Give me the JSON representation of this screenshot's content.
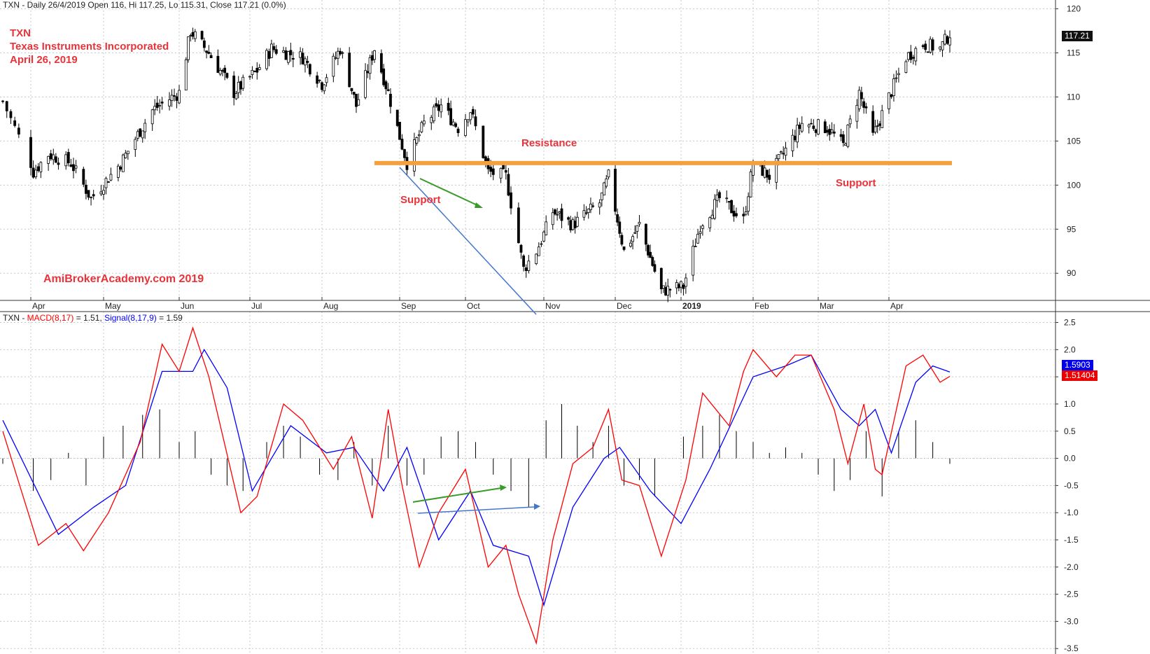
{
  "header": {
    "price_title": "TXN - Daily 26/4/2019 Open 116, Hi 117.25, Lo 115.31, Close 117.21 (0.0%)",
    "macd_prefix": "TXN - ",
    "macd_name": "MACD(8,17)",
    "macd_value": " = 1.51, ",
    "signal_name": "Signal(8,17,9)",
    "signal_value": " = 1.59"
  },
  "annotations": {
    "ticker": "TXN",
    "company": "Texas Instruments Incorporated",
    "date": "April 26, 2019",
    "watermark": "AmiBrokerAcademy.com  2019",
    "resistance": "Resistance",
    "support_left": "Support",
    "support_right": "Support"
  },
  "price_tags": {
    "last_price": "117.21",
    "signal_last": "1.5903",
    "macd_last": "1.51404"
  },
  "colors": {
    "macd": "#ff0000",
    "signal": "#0000ff",
    "resistance_line": "#f5a040",
    "grid": "#c8c8c8",
    "annotation_red": "#e8333a",
    "arrow_green": "#3a9a2a",
    "arrow_blue": "#4477cc"
  },
  "chart_data": [
    {
      "type": "candlestick",
      "title": "TXN - Daily 26/4/2019 Open 116, Hi 117.25, Lo 115.31, Close 117.21 (0.0%)",
      "ylim": [
        87,
        121
      ],
      "y_ticks": [
        90,
        95,
        100,
        105,
        110,
        115,
        120
      ],
      "x_tick_labels": [
        "Apr",
        "May",
        "Jun",
        "Jul",
        "Aug",
        "Sep",
        "Oct",
        "Nov",
        "Dec",
        "2019",
        "Feb",
        "Mar",
        "Apr"
      ],
      "x_tick_dates": [
        "2018-04-02",
        "2018-05-01",
        "2018-06-01",
        "2018-07-02",
        "2018-08-01",
        "2018-09-04",
        "2018-10-01",
        "2018-11-01",
        "2018-12-03",
        "2019-01-02",
        "2019-02-01",
        "2019-03-01",
        "2019-04-01"
      ],
      "close_path_approx": [
        {
          "date": "2018-03-26",
          "value": 109.5
        },
        {
          "date": "2018-04-03",
          "value": 101.5
        },
        {
          "date": "2018-04-09",
          "value": 103.5
        },
        {
          "date": "2018-04-18",
          "value": 102.5
        },
        {
          "date": "2018-04-26",
          "value": 98.5
        },
        {
          "date": "2018-05-08",
          "value": 102.5
        },
        {
          "date": "2018-05-21",
          "value": 108.5
        },
        {
          "date": "2018-06-01",
          "value": 110.5
        },
        {
          "date": "2018-06-06",
          "value": 117.5
        },
        {
          "date": "2018-06-14",
          "value": 115.0
        },
        {
          "date": "2018-06-25",
          "value": 110.5
        },
        {
          "date": "2018-07-05",
          "value": 113.0
        },
        {
          "date": "2018-07-11",
          "value": 115.5
        },
        {
          "date": "2018-07-24",
          "value": 114.5
        },
        {
          "date": "2018-08-01",
          "value": 111.5
        },
        {
          "date": "2018-08-09",
          "value": 115.5
        },
        {
          "date": "2018-08-16",
          "value": 109.0
        },
        {
          "date": "2018-08-24",
          "value": 115.5
        },
        {
          "date": "2018-08-30",
          "value": 110.5
        },
        {
          "date": "2018-09-07",
          "value": 102.5
        },
        {
          "date": "2018-09-14",
          "value": 107.0
        },
        {
          "date": "2018-09-21",
          "value": 109.0
        },
        {
          "date": "2018-09-28",
          "value": 106.5
        },
        {
          "date": "2018-10-03",
          "value": 108.5
        },
        {
          "date": "2018-10-10",
          "value": 101.5
        },
        {
          "date": "2018-10-17",
          "value": 101.0
        },
        {
          "date": "2018-10-24",
          "value": 90.5
        },
        {
          "date": "2018-10-29",
          "value": 92.5
        },
        {
          "date": "2018-11-05",
          "value": 97.0
        },
        {
          "date": "2018-11-14",
          "value": 95.5
        },
        {
          "date": "2018-11-26",
          "value": 98.0
        },
        {
          "date": "2018-11-30",
          "value": 101.0
        },
        {
          "date": "2018-12-07",
          "value": 92.5
        },
        {
          "date": "2018-12-14",
          "value": 95.5
        },
        {
          "date": "2018-12-24",
          "value": 88.0
        },
        {
          "date": "2019-01-03",
          "value": 88.5
        },
        {
          "date": "2019-01-10",
          "value": 95.5
        },
        {
          "date": "2019-01-18",
          "value": 98.5
        },
        {
          "date": "2019-01-28",
          "value": 96.0
        },
        {
          "date": "2019-02-01",
          "value": 102.5
        },
        {
          "date": "2019-02-08",
          "value": 101.0
        },
        {
          "date": "2019-02-15",
          "value": 104.0
        },
        {
          "date": "2019-02-22",
          "value": 107.0
        },
        {
          "date": "2019-03-05",
          "value": 106.5
        },
        {
          "date": "2019-03-12",
          "value": 104.5
        },
        {
          "date": "2019-03-19",
          "value": 110.5
        },
        {
          "date": "2019-03-25",
          "value": 105.5
        },
        {
          "date": "2019-04-01",
          "value": 110.0
        },
        {
          "date": "2019-04-08",
          "value": 114.5
        },
        {
          "date": "2019-04-15",
          "value": 116.0
        },
        {
          "date": "2019-04-22",
          "value": 115.5
        },
        {
          "date": "2019-04-26",
          "value": 117.21
        }
      ],
      "last_bar": {
        "date": "2019-04-26",
        "open": 116,
        "high": 117.25,
        "low": 115.31,
        "close": 117.21
      },
      "resistance_level": 102.5,
      "annotations": [
        "Resistance",
        "Support",
        "Support"
      ]
    },
    {
      "type": "line",
      "title": "TXN - MACD(8,17) = 1.51, Signal(8,17,9) = 1.59",
      "ylim": [
        -3.6,
        2.7
      ],
      "y_ticks": [
        -3.5,
        -3.0,
        -2.5,
        -2.0,
        -1.5,
        -1.0,
        -0.5,
        0.0,
        0.5,
        1.0,
        1.5,
        2.0,
        2.5
      ],
      "series": [
        {
          "name": "MACD(8,17)",
          "color": "#ff0000",
          "points": [
            {
              "date": "2018-03-26",
              "value": 0.5
            },
            {
              "date": "2018-04-05",
              "value": -1.6
            },
            {
              "date": "2018-04-16",
              "value": -1.2
            },
            {
              "date": "2018-04-23",
              "value": -1.7
            },
            {
              "date": "2018-05-03",
              "value": -1.0
            },
            {
              "date": "2018-05-16",
              "value": 0.3
            },
            {
              "date": "2018-05-25",
              "value": 2.1
            },
            {
              "date": "2018-06-01",
              "value": 1.6
            },
            {
              "date": "2018-06-07",
              "value": 2.4
            },
            {
              "date": "2018-06-14",
              "value": 1.5
            },
            {
              "date": "2018-06-28",
              "value": -1.0
            },
            {
              "date": "2018-07-05",
              "value": -0.7
            },
            {
              "date": "2018-07-16",
              "value": 1.0
            },
            {
              "date": "2018-07-24",
              "value": 0.7
            },
            {
              "date": "2018-08-06",
              "value": -0.2
            },
            {
              "date": "2018-08-14",
              "value": 0.4
            },
            {
              "date": "2018-08-23",
              "value": -1.1
            },
            {
              "date": "2018-08-30",
              "value": 0.9
            },
            {
              "date": "2018-09-05",
              "value": -0.5
            },
            {
              "date": "2018-09-12",
              "value": -2.0
            },
            {
              "date": "2018-09-20",
              "value": -1.0
            },
            {
              "date": "2018-10-01",
              "value": -0.2
            },
            {
              "date": "2018-10-10",
              "value": -2.0
            },
            {
              "date": "2018-10-17",
              "value": -1.6
            },
            {
              "date": "2018-10-22",
              "value": -2.5
            },
            {
              "date": "2018-10-29",
              "value": -3.4
            },
            {
              "date": "2018-11-05",
              "value": -1.5
            },
            {
              "date": "2018-11-14",
              "value": -0.1
            },
            {
              "date": "2018-11-23",
              "value": 0.2
            },
            {
              "date": "2018-11-30",
              "value": 0.9
            },
            {
              "date": "2018-12-06",
              "value": -0.4
            },
            {
              "date": "2018-12-14",
              "value": -0.5
            },
            {
              "date": "2018-12-24",
              "value": -1.8
            },
            {
              "date": "2019-01-04",
              "value": -0.4
            },
            {
              "date": "2019-01-11",
              "value": 1.2
            },
            {
              "date": "2019-01-22",
              "value": 0.6
            },
            {
              "date": "2019-01-28",
              "value": 1.6
            },
            {
              "date": "2019-02-01",
              "value": 2.0
            },
            {
              "date": "2019-02-11",
              "value": 1.5
            },
            {
              "date": "2019-02-19",
              "value": 1.9
            },
            {
              "date": "2019-02-26",
              "value": 1.9
            },
            {
              "date": "2019-03-08",
              "value": 0.9
            },
            {
              "date": "2019-03-14",
              "value": -0.1
            },
            {
              "date": "2019-03-21",
              "value": 1.0
            },
            {
              "date": "2019-03-26",
              "value": -0.2
            },
            {
              "date": "2019-03-29",
              "value": -0.3
            },
            {
              "date": "2019-04-08",
              "value": 1.7
            },
            {
              "date": "2019-04-15",
              "value": 1.9
            },
            {
              "date": "2019-04-22",
              "value": 1.4
            },
            {
              "date": "2019-04-26",
              "value": 1.51
            }
          ]
        },
        {
          "name": "Signal(8,17,9)",
          "color": "#0000ff",
          "points": [
            {
              "date": "2018-03-26",
              "value": 0.7
            },
            {
              "date": "2018-04-13",
              "value": -1.4
            },
            {
              "date": "2018-04-27",
              "value": -0.9
            },
            {
              "date": "2018-05-10",
              "value": -0.5
            },
            {
              "date": "2018-05-25",
              "value": 1.6
            },
            {
              "date": "2018-06-07",
              "value": 1.6
            },
            {
              "date": "2018-06-12",
              "value": 2.0
            },
            {
              "date": "2018-06-22",
              "value": 1.3
            },
            {
              "date": "2018-07-03",
              "value": -0.6
            },
            {
              "date": "2018-07-19",
              "value": 0.6
            },
            {
              "date": "2018-08-03",
              "value": 0.1
            },
            {
              "date": "2018-08-15",
              "value": 0.2
            },
            {
              "date": "2018-08-28",
              "value": -0.6
            },
            {
              "date": "2018-09-07",
              "value": 0.2
            },
            {
              "date": "2018-09-20",
              "value": -1.5
            },
            {
              "date": "2018-10-03",
              "value": -0.6
            },
            {
              "date": "2018-10-12",
              "value": -1.6
            },
            {
              "date": "2018-10-26",
              "value": -1.8
            },
            {
              "date": "2018-11-01",
              "value": -2.7
            },
            {
              "date": "2018-11-14",
              "value": -0.9
            },
            {
              "date": "2018-11-28",
              "value": 0.0
            },
            {
              "date": "2018-12-05",
              "value": 0.2
            },
            {
              "date": "2018-12-19",
              "value": -0.6
            },
            {
              "date": "2019-01-02",
              "value": -1.2
            },
            {
              "date": "2019-01-14",
              "value": -0.2
            },
            {
              "date": "2019-02-01",
              "value": 1.5
            },
            {
              "date": "2019-02-15",
              "value": 1.7
            },
            {
              "date": "2019-02-26",
              "value": 1.9
            },
            {
              "date": "2019-03-11",
              "value": 0.9
            },
            {
              "date": "2019-03-19",
              "value": 0.6
            },
            {
              "date": "2019-03-26",
              "value": 0.9
            },
            {
              "date": "2019-04-02",
              "value": 0.1
            },
            {
              "date": "2019-04-12",
              "value": 1.4
            },
            {
              "date": "2019-04-19",
              "value": 1.7
            },
            {
              "date": "2019-04-26",
              "value": 1.59
            }
          ]
        },
        {
          "name": "Histogram",
          "type": "bar",
          "color": "#000000",
          "points": [
            {
              "date": "2018-03-26",
              "value": -0.1
            },
            {
              "date": "2018-04-03",
              "value": -0.6
            },
            {
              "date": "2018-04-10",
              "value": -0.4
            },
            {
              "date": "2018-04-17",
              "value": 0.1
            },
            {
              "date": "2018-04-24",
              "value": -0.5
            },
            {
              "date": "2018-05-01",
              "value": 0.4
            },
            {
              "date": "2018-05-09",
              "value": 0.6
            },
            {
              "date": "2018-05-17",
              "value": 0.8
            },
            {
              "date": "2018-05-24",
              "value": 0.9
            },
            {
              "date": "2018-06-01",
              "value": 0.3
            },
            {
              "date": "2018-06-08",
              "value": 0.5
            },
            {
              "date": "2018-06-15",
              "value": -0.3
            },
            {
              "date": "2018-06-22",
              "value": -0.5
            },
            {
              "date": "2018-06-29",
              "value": -0.6
            },
            {
              "date": "2018-07-09",
              "value": 0.3
            },
            {
              "date": "2018-07-16",
              "value": 0.6
            },
            {
              "date": "2018-07-23",
              "value": 0.4
            },
            {
              "date": "2018-07-31",
              "value": -0.3
            },
            {
              "date": "2018-08-08",
              "value": -0.4
            },
            {
              "date": "2018-08-15",
              "value": 0.3
            },
            {
              "date": "2018-08-23",
              "value": -0.5
            },
            {
              "date": "2018-08-30",
              "value": 0.6
            },
            {
              "date": "2018-09-07",
              "value": -0.5
            },
            {
              "date": "2018-09-14",
              "value": -0.3
            },
            {
              "date": "2018-09-21",
              "value": 0.4
            },
            {
              "date": "2018-09-28",
              "value": 0.5
            },
            {
              "date": "2018-10-05",
              "value": 0.3
            },
            {
              "date": "2018-10-12",
              "value": -0.3
            },
            {
              "date": "2018-10-19",
              "value": -0.6
            },
            {
              "date": "2018-10-26",
              "value": -0.9
            },
            {
              "date": "2018-11-02",
              "value": 0.7
            },
            {
              "date": "2018-11-09",
              "value": 1.0
            },
            {
              "date": "2018-11-16",
              "value": 0.6
            },
            {
              "date": "2018-11-23",
              "value": 0.3
            },
            {
              "date": "2018-11-30",
              "value": 0.6
            },
            {
              "date": "2018-12-07",
              "value": -0.5
            },
            {
              "date": "2018-12-14",
              "value": -0.4
            },
            {
              "date": "2018-12-21",
              "value": -0.7
            },
            {
              "date": "2019-01-03",
              "value": 0.4
            },
            {
              "date": "2019-01-11",
              "value": 0.6
            },
            {
              "date": "2019-01-18",
              "value": 0.8
            },
            {
              "date": "2019-01-25",
              "value": 0.5
            },
            {
              "date": "2019-02-01",
              "value": 0.3
            },
            {
              "date": "2019-02-08",
              "value": 0.1
            },
            {
              "date": "2019-02-15",
              "value": 0.2
            },
            {
              "date": "2019-02-22",
              "value": 0.1
            },
            {
              "date": "2019-03-01",
              "value": -0.3
            },
            {
              "date": "2019-03-08",
              "value": -0.6
            },
            {
              "date": "2019-03-15",
              "value": -0.4
            },
            {
              "date": "2019-03-22",
              "value": 0.5
            },
            {
              "date": "2019-03-29",
              "value": -0.7
            },
            {
              "date": "2019-04-05",
              "value": 0.5
            },
            {
              "date": "2019-04-12",
              "value": 0.7
            },
            {
              "date": "2019-04-19",
              "value": 0.3
            },
            {
              "date": "2019-04-26",
              "value": -0.1
            }
          ]
        }
      ]
    }
  ]
}
